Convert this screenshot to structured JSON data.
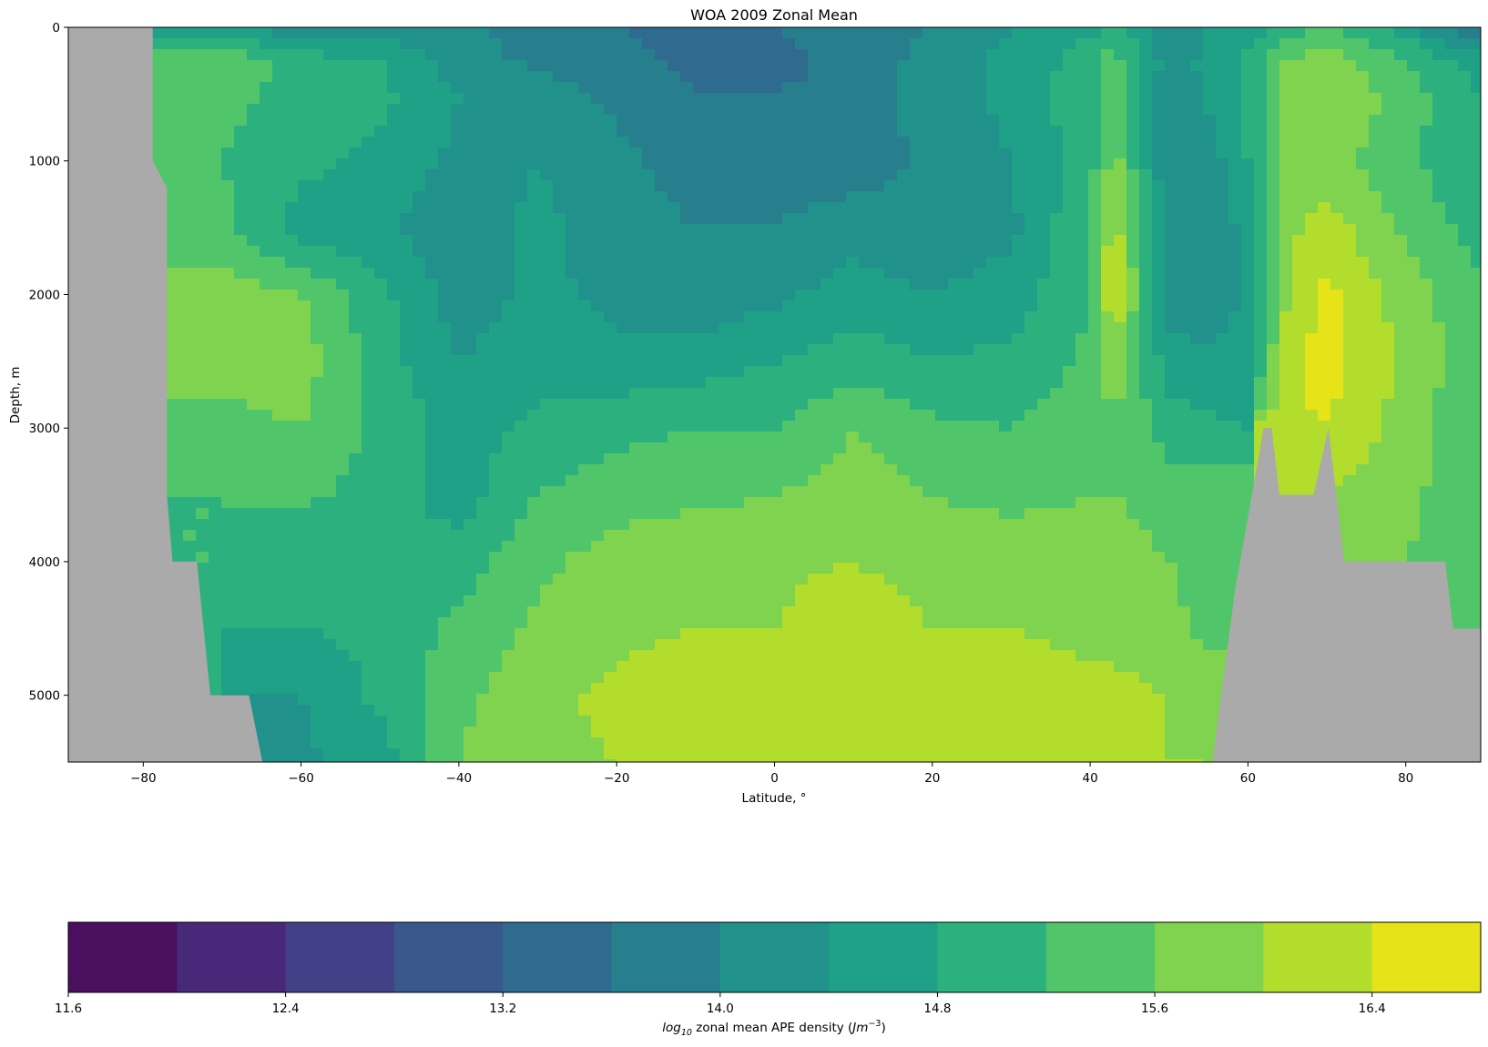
{
  "chart_data": {
    "type": "heatmap",
    "subtype": "filled-contour",
    "title": "WOA 2009 Zonal Mean",
    "xlabel": "Latitude, $^\\circ$",
    "xlabel_display": "Latitude, °",
    "ylabel": "Depth, m",
    "xlim": [
      -89.5,
      89.5
    ],
    "ylim": [
      5500,
      0
    ],
    "y_inverted": true,
    "xticks": [
      -80,
      -60,
      -40,
      -20,
      0,
      20,
      40,
      60,
      80
    ],
    "xtick_labels": [
      "−80",
      "−60",
      "−40",
      "−20",
      "0",
      "20",
      "40",
      "60",
      "80"
    ],
    "yticks": [
      0,
      1000,
      2000,
      3000,
      4000,
      5000
    ],
    "ytick_labels": [
      "0",
      "1000",
      "2000",
      "3000",
      "4000",
      "5000"
    ],
    "grid": false,
    "land_mask_color": "#aaaaaa",
    "colormap": "viridis",
    "colorbar": {
      "orientation": "horizontal",
      "placement": "bottom",
      "label_prefix": "log",
      "label_subscript": "10",
      "label_middle": " zonal mean APE density (",
      "label_unit": "Jm",
      "label_exponent": "−3",
      "label_suffix": ")",
      "range": [
        11.6,
        16.8
      ],
      "level_step": 0.4,
      "tick_values": [
        11.6,
        12.4,
        13.2,
        14.0,
        14.8,
        15.6,
        16.4
      ],
      "tick_labels": [
        "11.6",
        "12.4",
        "13.2",
        "14.0",
        "14.8",
        "15.6",
        "16.4"
      ],
      "level_colors": [
        "#4a0f5f",
        "#482879",
        "#424086",
        "#38588c",
        "#2f6b8e",
        "#277f8e",
        "#21918c",
        "#1fa187",
        "#2cb17e",
        "#51c569",
        "#7fd34e",
        "#b3dd2c",
        "#e6e419"
      ]
    },
    "field_samples": {
      "description_keys": [
        "latitude",
        "depth_m",
        "log10_APE"
      ],
      "latitudes": [
        -89.5,
        -80,
        -70,
        -60,
        -50,
        -40,
        -30,
        -20,
        -10,
        0,
        10,
        20,
        30,
        40,
        43,
        50,
        55,
        60,
        65,
        70,
        80,
        89.5
      ],
      "depths": [
        0,
        250,
        500,
        1000,
        1500,
        2000,
        2500,
        3000,
        3500,
        4000,
        4500,
        5000,
        5500
      ],
      "values": [
        [
          null,
          null,
          14.5,
          14.1,
          14.2,
          14.1,
          13.8,
          13.6,
          13.5,
          13.6,
          13.7,
          14.0,
          14.4,
          14.7,
          14.9,
          14.1,
          14.4,
          14.6,
          15.0,
          15.2,
          14.6,
          13.4
        ],
        [
          null,
          null,
          15.5,
          15.0,
          14.8,
          14.2,
          13.9,
          13.7,
          13.5,
          13.5,
          13.7,
          14.2,
          14.5,
          15.0,
          15.4,
          14.2,
          14.5,
          14.9,
          15.6,
          15.8,
          15.2,
          14.6
        ],
        [
          null,
          null,
          15.3,
          15.1,
          14.9,
          14.4,
          14.2,
          13.9,
          13.6,
          13.6,
          13.7,
          14.2,
          14.5,
          15.1,
          15.6,
          14.0,
          14.5,
          14.9,
          15.8,
          16.0,
          15.4,
          14.8
        ],
        [
          null,
          null,
          15.2,
          14.9,
          14.7,
          14.3,
          14.4,
          14.1,
          13.8,
          13.8,
          13.8,
          14.1,
          14.4,
          15.0,
          15.8,
          14.0,
          14.2,
          14.8,
          15.7,
          15.8,
          15.3,
          14.8
        ],
        [
          null,
          null,
          15.3,
          14.6,
          14.5,
          14.1,
          14.5,
          14.2,
          14.0,
          14.0,
          14.2,
          14.1,
          14.3,
          15.2,
          16.2,
          14.1,
          14.0,
          14.6,
          15.9,
          16.2,
          15.5,
          15.0
        ],
        [
          null,
          null,
          15.8,
          15.6,
          14.9,
          14.2,
          14.5,
          14.3,
          14.1,
          14.3,
          14.6,
          14.4,
          14.6,
          15.2,
          16.5,
          14.2,
          14.1,
          14.5,
          16.0,
          16.5,
          15.8,
          15.3
        ],
        [
          null,
          null,
          15.7,
          15.8,
          15.0,
          14.4,
          14.6,
          14.5,
          14.6,
          14.8,
          15.0,
          14.8,
          14.9,
          15.3,
          15.8,
          14.6,
          14.5,
          14.5,
          16.3,
          16.6,
          15.9,
          15.3
        ],
        [
          null,
          null,
          15.5,
          15.6,
          15.1,
          14.6,
          14.9,
          15.1,
          15.2,
          15.2,
          15.6,
          15.3,
          15.2,
          15.4,
          15.6,
          15.0,
          14.9,
          null,
          16.3,
          16.4,
          15.8,
          15.2
        ],
        [
          null,
          null,
          15.2,
          15.3,
          15.0,
          14.6,
          15.2,
          15.4,
          15.5,
          15.6,
          15.8,
          15.6,
          15.5,
          15.6,
          15.6,
          15.4,
          15.4,
          null,
          16.0,
          16.0,
          15.7,
          15.3
        ],
        [
          null,
          null,
          null,
          14.9,
          14.8,
          15.0,
          15.5,
          15.8,
          15.9,
          15.9,
          16.0,
          15.8,
          15.8,
          15.8,
          15.8,
          15.6,
          15.5,
          null,
          null,
          null,
          null,
          15.3
        ],
        [
          null,
          null,
          null,
          14.8,
          14.9,
          15.3,
          15.7,
          15.9,
          16.0,
          16.0,
          16.3,
          16.0,
          16.0,
          15.9,
          15.9,
          15.7,
          15.5,
          null,
          null,
          null,
          null,
          null
        ],
        [
          null,
          null,
          null,
          14.4,
          14.9,
          15.5,
          15.9,
          16.1,
          16.2,
          16.2,
          16.3,
          16.3,
          16.2,
          16.1,
          16.1,
          16.0,
          15.9,
          null,
          null,
          null,
          null,
          null
        ],
        [
          null,
          null,
          null,
          14.3,
          14.6,
          15.6,
          15.9,
          16.0,
          16.1,
          16.1,
          16.2,
          16.1,
          16.1,
          16.1,
          16.1,
          16.0,
          null,
          null,
          null,
          null,
          null,
          null
        ]
      ]
    }
  }
}
